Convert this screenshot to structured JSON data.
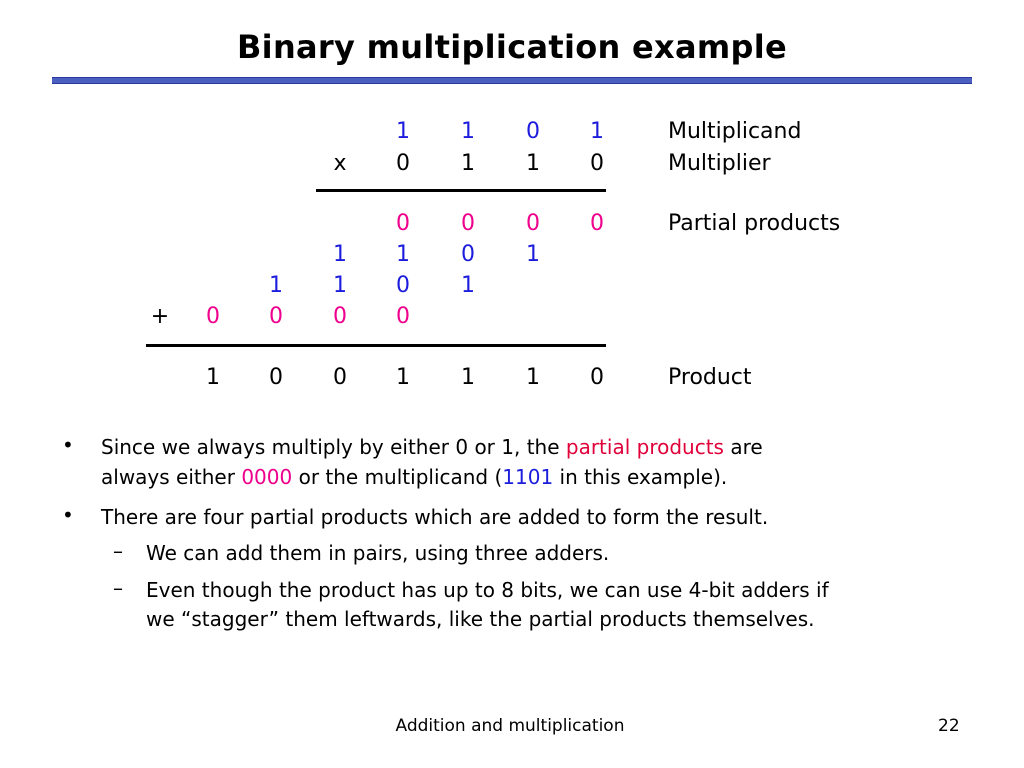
{
  "title": "Binary multiplication example",
  "multiplication": {
    "multiplicand_digits": [
      "1",
      "1",
      "0",
      "1"
    ],
    "multiplier_sign": "x",
    "multiplier_digits": [
      "0",
      "1",
      "1",
      "0"
    ],
    "partial_rows": [
      [
        "0",
        "0",
        "0",
        "0"
      ],
      [
        "1",
        "1",
        "0",
        "1"
      ],
      [
        "1",
        "1",
        "0",
        "1"
      ],
      [
        "0",
        "0",
        "0",
        "0"
      ]
    ],
    "plus_sign": "+",
    "product_digits": [
      "1",
      "0",
      "0",
      "1",
      "1",
      "1",
      "0"
    ],
    "labels": {
      "multiplicand": "Multiplicand",
      "multiplier": "Multiplier",
      "partial_products": "Partial products",
      "product": "Product"
    }
  },
  "bullets": {
    "b1_line1_pre": "Since we always multiply by either 0 or 1, the",
    "b1_line1_highlight": "partial products",
    "b1_line1_post": "are",
    "b1_line2_pre": "always either",
    "b1_line2_zeros": "0000",
    "b1_line2_mid": "or the multiplicand (",
    "b1_line2_value": "1101",
    "b1_line2_post": "in this example).",
    "b2_line1": "There are four partial products which are added to form the result.",
    "sub1_line1": "We can add them in pairs, using three adders.",
    "sub2_line1": "Even though the product has up to 8 bits, we can use 4-bit adders if",
    "sub2_line2": "we “stagger” them leftwards, like the partial products themselves.",
    "bullet_marker": "•",
    "dash_marker": "–"
  },
  "footer": {
    "center": "Addition and multiplication",
    "page": "22"
  },
  "colors": {
    "title_rule": "#4b5fc0",
    "blue_digits": "#1c1cdc",
    "pink_digits": "#ee008c",
    "highlight_text": "#e0003a"
  }
}
